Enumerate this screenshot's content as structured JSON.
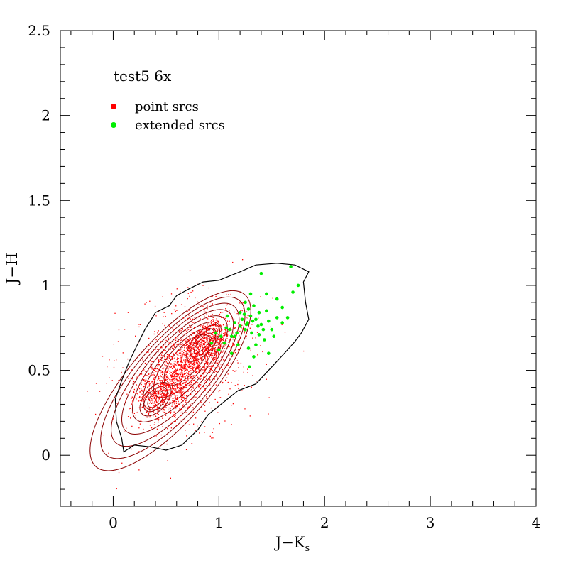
{
  "chart_data": {
    "type": "scatter",
    "annotation": "test5 6x",
    "xlabel_main": "J−K",
    "xlabel_sub": "s",
    "ylabel": "J−H",
    "xlim": [
      -0.5,
      4
    ],
    "ylim": [
      -0.3,
      2.5
    ],
    "x_ticks": [
      0,
      1,
      2,
      3,
      4
    ],
    "x_tick_labels": [
      "0",
      "1",
      "2",
      "3",
      "4"
    ],
    "y_ticks": [
      0,
      0.5,
      1,
      1.5,
      2,
      2.5
    ],
    "y_tick_labels": [
      "0",
      "0.5",
      "1",
      "1.5",
      "2",
      "2.5"
    ],
    "grid": false,
    "legend_position": "top-left",
    "series": [
      {
        "name": "point srcs",
        "color": "#ff0000",
        "marker": "dot",
        "distribution": {
          "count": 2600,
          "ridge_start": [
            0.4,
            0.32
          ],
          "ridge_end": [
            0.9,
            0.68
          ],
          "spread": 0.12
        }
      },
      {
        "name": "extended srcs",
        "color": "#00ee00",
        "marker": "circle",
        "points": [
          [
            0.93,
            0.66
          ],
          [
            0.97,
            0.72
          ],
          [
            1.0,
            0.62
          ],
          [
            1.02,
            0.7
          ],
          [
            1.05,
            0.66
          ],
          [
            1.07,
            0.75
          ],
          [
            1.1,
            0.74
          ],
          [
            1.12,
            0.7
          ],
          [
            1.15,
            0.78
          ],
          [
            1.17,
            0.72
          ],
          [
            1.2,
            0.76
          ],
          [
            1.22,
            0.8
          ],
          [
            1.24,
            0.83
          ],
          [
            1.25,
            0.74
          ],
          [
            1.27,
            0.78
          ],
          [
            1.28,
            0.86
          ],
          [
            1.3,
            0.82
          ],
          [
            1.31,
            0.72
          ],
          [
            1.33,
            0.88
          ],
          [
            1.35,
            0.8
          ],
          [
            1.37,
            0.76
          ],
          [
            1.38,
            0.84
          ],
          [
            1.4,
            0.77
          ],
          [
            1.42,
            0.74
          ],
          [
            1.45,
            0.85
          ],
          [
            1.47,
            0.79
          ],
          [
            1.5,
            0.74
          ],
          [
            1.55,
            0.81
          ],
          [
            1.6,
            0.87
          ],
          [
            1.65,
            0.81
          ],
          [
            1.7,
            0.96
          ],
          [
            1.75,
            1.0
          ],
          [
            1.4,
            1.07
          ],
          [
            1.68,
            1.11
          ],
          [
            1.3,
            0.95
          ],
          [
            1.35,
            0.65
          ],
          [
            1.28,
            0.63
          ],
          [
            1.29,
            0.52
          ],
          [
            1.33,
            0.58
          ],
          [
            1.43,
            0.68
          ],
          [
            1.52,
            0.7
          ],
          [
            1.47,
            0.6
          ],
          [
            1.2,
            0.84
          ],
          [
            1.25,
            0.9
          ],
          [
            1.15,
            0.7
          ],
          [
            1.08,
            0.82
          ],
          [
            1.18,
            0.65
          ],
          [
            1.55,
            0.92
          ],
          [
            1.32,
            0.79
          ],
          [
            1.26,
            0.77
          ],
          [
            1.38,
            0.71
          ],
          [
            1.45,
            0.95
          ],
          [
            1.6,
            0.78
          ],
          [
            1.12,
            0.6
          ]
        ]
      }
    ],
    "contours": {
      "color": "#8b0000",
      "outer_color": "#000000",
      "center": [
        0.62,
        0.5
      ],
      "levels": [
        0.15,
        0.25,
        0.35,
        0.45,
        0.55,
        0.65,
        0.75,
        0.85
      ],
      "outer_polygon": [
        [
          0.1,
          0.02
        ],
        [
          0.2,
          0.06
        ],
        [
          0.35,
          0.05
        ],
        [
          0.5,
          0.03
        ],
        [
          0.65,
          0.06
        ],
        [
          0.8,
          0.15
        ],
        [
          0.9,
          0.24
        ],
        [
          1.02,
          0.3
        ],
        [
          1.18,
          0.38
        ],
        [
          1.35,
          0.42
        ],
        [
          1.5,
          0.52
        ],
        [
          1.62,
          0.6
        ],
        [
          1.72,
          0.67
        ],
        [
          1.78,
          0.72
        ],
        [
          1.85,
          0.8
        ],
        [
          1.82,
          0.9
        ],
        [
          1.8,
          1.02
        ],
        [
          1.85,
          1.08
        ],
        [
          1.72,
          1.12
        ],
        [
          1.55,
          1.13
        ],
        [
          1.35,
          1.12
        ],
        [
          1.2,
          1.08
        ],
        [
          1.0,
          1.03
        ],
        [
          0.85,
          1.02
        ],
        [
          0.72,
          0.98
        ],
        [
          0.6,
          0.94
        ],
        [
          0.53,
          0.88
        ],
        [
          0.4,
          0.84
        ],
        [
          0.3,
          0.74
        ],
        [
          0.22,
          0.64
        ],
        [
          0.15,
          0.55
        ],
        [
          0.08,
          0.44
        ],
        [
          0.02,
          0.33
        ],
        [
          0.03,
          0.2
        ],
        [
          0.08,
          0.1
        ]
      ]
    }
  }
}
